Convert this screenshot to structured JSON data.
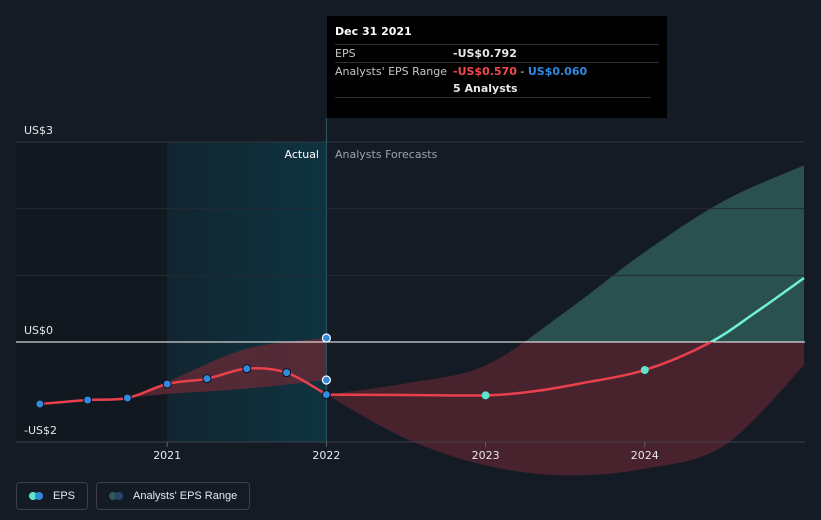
{
  "chart_data": {
    "type": "line",
    "ylabels": {
      "top": "US$3",
      "zero": "US$0",
      "bottom": "-US$2"
    },
    "xlim": [
      2020.0,
      2025.0
    ],
    "ylim": [
      -2.0,
      3.0
    ],
    "xticks": [
      {
        "value": 2021,
        "label": "2021"
      },
      {
        "value": 2022,
        "label": "2022"
      },
      {
        "value": 2023,
        "label": "2023"
      },
      {
        "value": 2024,
        "label": "2024"
      }
    ],
    "regions": {
      "actual": "Actual",
      "forecast": "Analysts Forecasts",
      "split_x": 2022.0,
      "highlight_start_x": 2021.0
    },
    "eps_actual": {
      "name": "EPS",
      "x": [
        2020.2,
        2020.5,
        2020.75,
        2021.0,
        2021.25,
        2021.5,
        2021.75,
        2022.0
      ],
      "y": [
        -0.93,
        -0.87,
        -0.84,
        -0.63,
        -0.55,
        -0.4,
        -0.46,
        -0.79
      ]
    },
    "eps_forecast": {
      "name": "EPS",
      "x": [
        2022.0,
        2023.0,
        2024.0,
        2025.0
      ],
      "y": [
        -0.79,
        -0.8,
        -0.42,
        0.96
      ],
      "curve_x": [
        2022.0,
        2022.5,
        2023.0,
        2023.3,
        2023.6,
        2024.0,
        2024.4,
        2024.7,
        2025.0
      ],
      "curve_y": [
        -0.79,
        -0.795,
        -0.8,
        -0.74,
        -0.62,
        -0.42,
        -0.02,
        0.45,
        0.96
      ]
    },
    "actual_range": {
      "x": [
        2020.75,
        2021.0,
        2021.5,
        2022.0
      ],
      "upper": [
        -0.84,
        -0.6,
        -0.1,
        0.06
      ],
      "lower": [
        -0.84,
        -0.78,
        -0.7,
        -0.57
      ]
    },
    "forecast_range": {
      "x": [
        2022.0,
        2022.5,
        2023.0,
        2023.5,
        2024.0,
        2024.5,
        2025.0
      ],
      "upper": [
        -0.79,
        -0.62,
        -0.35,
        0.45,
        1.35,
        2.12,
        2.65
      ],
      "lower": [
        -0.79,
        -1.45,
        -1.85,
        -2.0,
        -1.9,
        -1.55,
        -0.35
      ]
    },
    "colors": {
      "eps_line": "#e8404c",
      "eps_point": "#2f8ae0",
      "forecast_point": "#5ee6c8",
      "positive_line": "#6ff0d8",
      "range_fill_green": "#2f5a57",
      "range_fill_red": "#6a2a35",
      "highlight": "#0e3340",
      "past_bg": "#111820"
    }
  },
  "tooltip": {
    "date": "Dec 31 2021",
    "eps_label": "EPS",
    "eps_value": "-US$0.792",
    "range_label": "Analysts' EPS Range",
    "range_low": "-US$0.570",
    "range_sep": " - ",
    "range_high": "US$0.060",
    "analysts": "5 Analysts"
  },
  "legend": {
    "eps": "EPS",
    "range": "Analysts' EPS Range"
  }
}
